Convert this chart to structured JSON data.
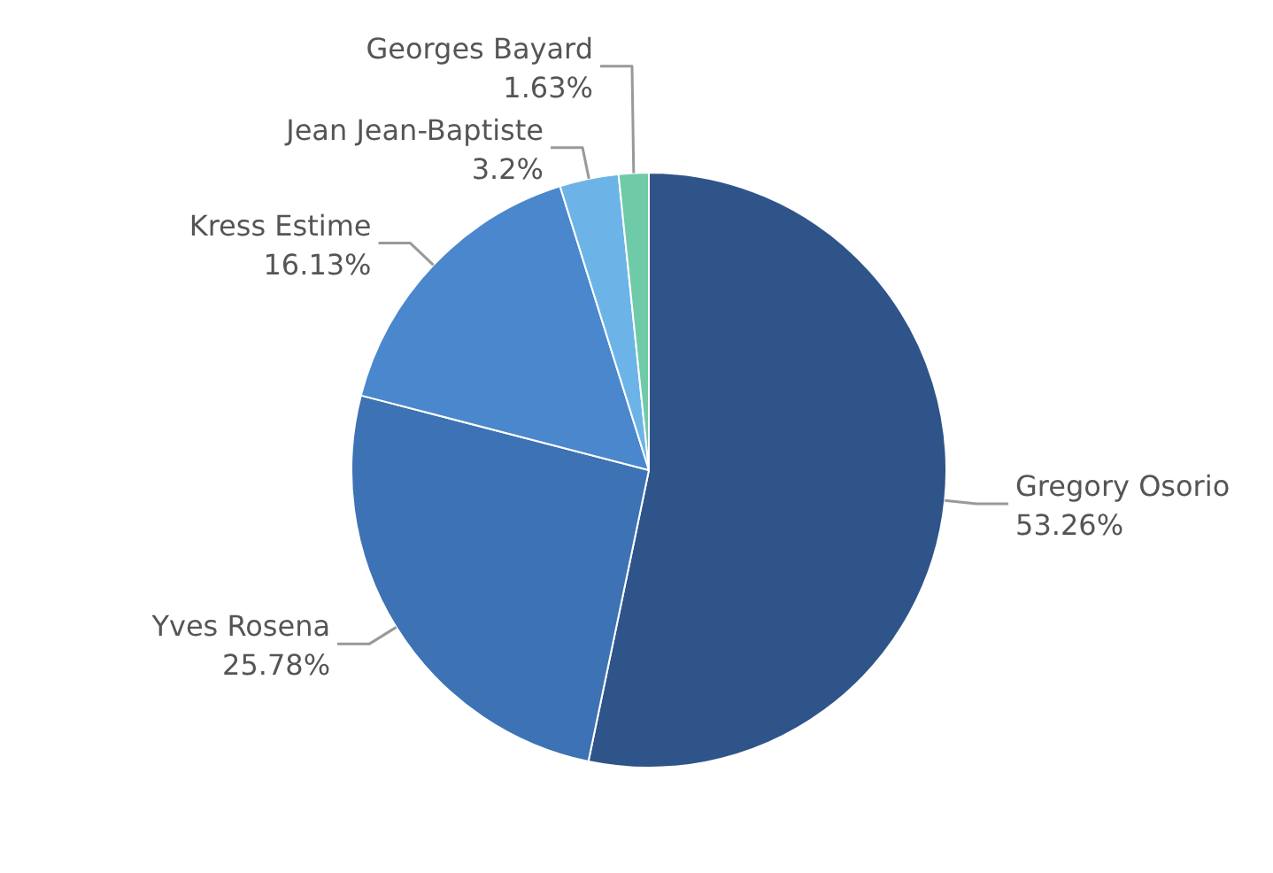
{
  "chart_data": {
    "type": "pie",
    "categories": [
      "Gregory Osorio",
      "Yves Rosena",
      "Kress Estime",
      "Jean Jean-Baptiste",
      "Georges Bayard"
    ],
    "values": [
      53.26,
      25.78,
      16.13,
      3.2,
      1.63
    ],
    "colors": [
      "#2e5489",
      "#3d72b4",
      "#4a87cc",
      "#6cb4e8",
      "#6fcaa7"
    ],
    "value_labels": [
      "53.26%",
      "25.78%",
      "16.13%",
      "3.2%",
      "1.63%"
    ]
  }
}
